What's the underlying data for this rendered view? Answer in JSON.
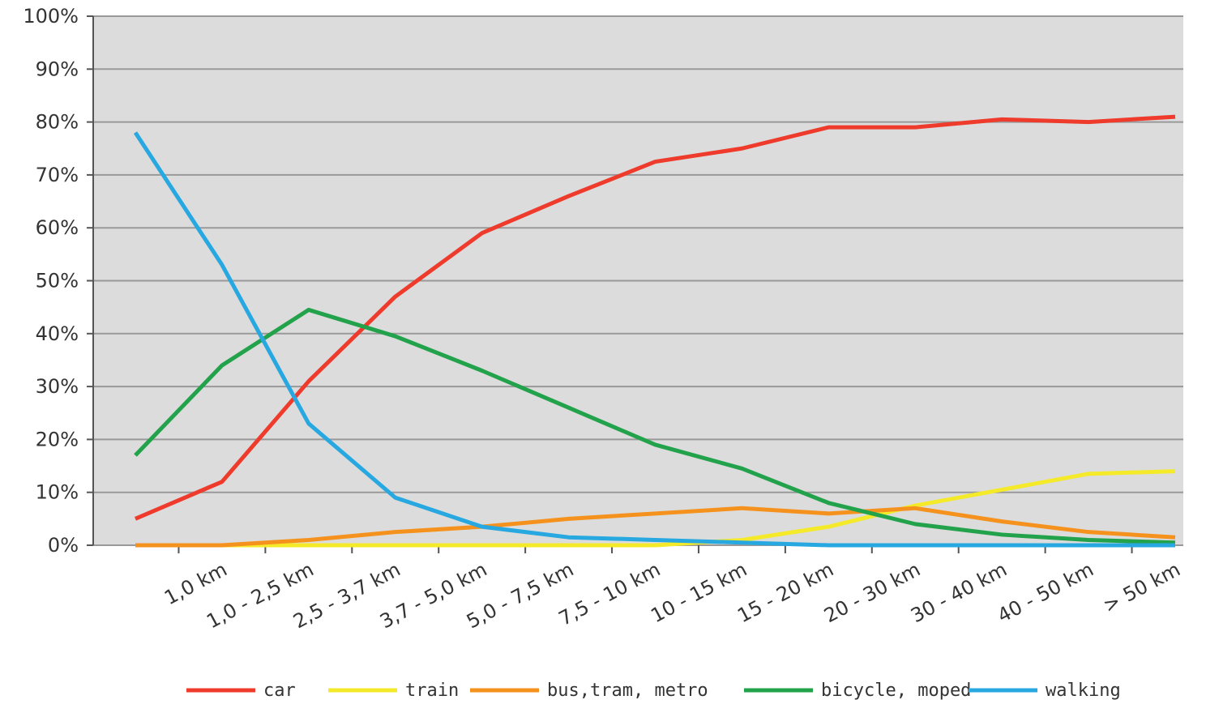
{
  "chart_data": {
    "type": "line",
    "categories": [
      null,
      "1,0 km",
      "1,0 - 2,5 km",
      "2,5 - 3,7 km",
      "3,7 - 5,0 km",
      "5,0 - 7,5 km",
      "7,5 - 10 km",
      "10 - 15 km",
      "15 - 20 km",
      "20 - 30 km",
      "30 - 40 km",
      "40 - 50 km",
      "> 50 km"
    ],
    "series": [
      {
        "name": "car",
        "color": "#ee3b2b",
        "values": [
          5,
          12,
          31,
          47,
          59,
          66,
          72.5,
          75,
          79,
          79,
          80.5,
          80,
          81
        ]
      },
      {
        "name": "train",
        "color": "#f4ea2a",
        "values": [
          0,
          0,
          0,
          0,
          0,
          0,
          0,
          1,
          3.5,
          7.5,
          10.5,
          13.5,
          14
        ]
      },
      {
        "name": "bus,tram, metro",
        "color": "#f5921e",
        "values": [
          0,
          0,
          1,
          2.5,
          3.5,
          5,
          6,
          7,
          6,
          7,
          4.5,
          2.5,
          1.5
        ]
      },
      {
        "name": "bicycle, moped",
        "color": "#22a24a",
        "values": [
          17,
          34,
          44.5,
          39.5,
          33,
          26,
          19,
          14.5,
          8,
          4,
          2,
          1,
          0.5
        ]
      },
      {
        "name": "walking",
        "color": "#27a8e0",
        "values": [
          78,
          53,
          23,
          9,
          3.5,
          1.5,
          1,
          0.5,
          0,
          0,
          0,
          0,
          0
        ]
      }
    ],
    "ylim": [
      0,
      100
    ],
    "yticks": [
      {
        "value": 0,
        "label": "0%"
      },
      {
        "value": 10,
        "label": "10%"
      },
      {
        "value": 20,
        "label": "20%"
      },
      {
        "value": 30,
        "label": "30%"
      },
      {
        "value": 40,
        "label": "40%"
      },
      {
        "value": 50,
        "label": "50%"
      },
      {
        "value": 60,
        "label": "60%"
      },
      {
        "value": 70,
        "label": "70%"
      },
      {
        "value": 80,
        "label": "80%"
      },
      {
        "value": 90,
        "label": "90%"
      },
      {
        "value": 100,
        "label": "100%"
      }
    ],
    "grid": true
  }
}
